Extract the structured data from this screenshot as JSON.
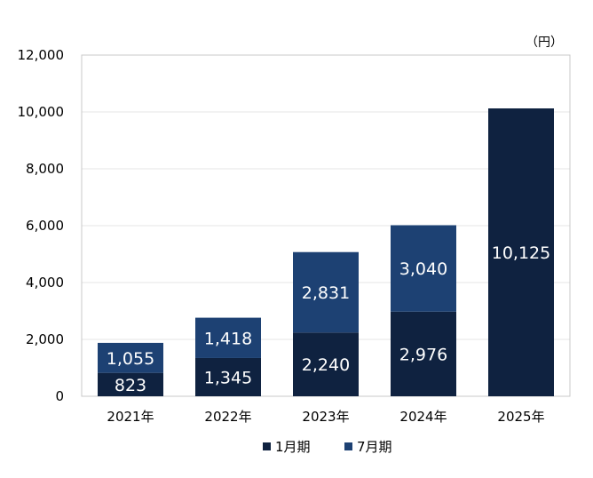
{
  "chart_data": {
    "type": "bar",
    "stacked": true,
    "unit_label": "（円）",
    "categories": [
      "2021年",
      "2022年",
      "2023年",
      "2024年",
      "2025年"
    ],
    "series": [
      {
        "name": "1月期",
        "values": [
          823,
          1345,
          2240,
          2976,
          10125
        ],
        "labels": [
          "823",
          "1,345",
          "2,240",
          "2,976",
          "10,125"
        ],
        "color": "#0f2240"
      },
      {
        "name": "7月期",
        "values": [
          1055,
          1418,
          2831,
          3040,
          null
        ],
        "labels": [
          "1,055",
          "1,418",
          "2,831",
          "3,040",
          null
        ],
        "color": "#1d4173"
      }
    ],
    "ylim": [
      0,
      12000
    ],
    "yticks": [
      0,
      2000,
      4000,
      6000,
      8000,
      10000,
      12000
    ],
    "ytick_labels": [
      "0",
      "2,000",
      "4,000",
      "6,000",
      "8,000",
      "10,000",
      "12,000"
    ],
    "grid": true,
    "legend_position": "bottom"
  }
}
